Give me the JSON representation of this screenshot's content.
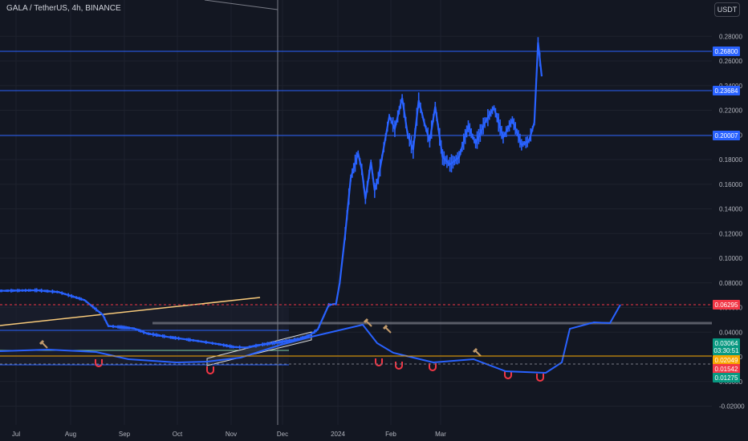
{
  "header": {
    "title": "GALA / TetherUS, 4h, BINANCE",
    "currency_button": "USDT"
  },
  "colors": {
    "background": "#131722",
    "price": "#2962ff",
    "grid": "#1e222d",
    "axis_text": "#b2b5be",
    "current_price": "#f23645",
    "support_green": "#089981",
    "orange_level": "#f7a600"
  },
  "chart_data": {
    "type": "line",
    "title": "GALA / TetherUS, 4h, BINANCE",
    "xlabel": "",
    "ylabel": "",
    "ylim": [
      -0.025,
      0.295
    ],
    "grid": true,
    "x_ticks": [
      "Jul",
      "Aug",
      "Sep",
      "Oct",
      "Nov",
      "Dec",
      "2024",
      "Feb",
      "Mar"
    ],
    "y_ticks": [
      "0.28000",
      "0.26000",
      "0.24000",
      "0.22000",
      "0.20000",
      "0.18000",
      "0.16000",
      "0.14000",
      "0.12000",
      "0.10000",
      "0.08000",
      "0.06000",
      "0.04000",
      "0.02000",
      "0.00000",
      "-0.02000"
    ],
    "series": [
      {
        "x": [
          "Jun 20",
          "Jul 10",
          "Jul 22",
          "Aug 5",
          "Aug 15",
          "Aug 18",
          "Sep 1",
          "Sep 8",
          "Sep 20",
          "Oct 5",
          "Oct 18",
          "Oct 25",
          "Nov 1",
          "Nov 10",
          "Nov 20",
          "Nov 30",
          "Dec 5",
          "Dec 10",
          "Dec 16",
          "Dec 20",
          "Dec 22",
          "Dec 25",
          "Dec 28",
          "Jan 1",
          "Jan 3",
          "Jan 5",
          "Jan 8",
          "Jan 10",
          "Jan 12",
          "Jan 15",
          "Jan 18",
          "Jan 21",
          "Jan 25",
          "Jan 28",
          "Jan 31",
          "Feb 3",
          "Feb 6",
          "Feb 9",
          "Feb 12",
          "Feb 16",
          "Feb 20",
          "Feb 25",
          "Mar 1",
          "Mar 5",
          "Mar 10",
          "Mar 15",
          "Mar 20",
          "Mar 25",
          "Mar 30",
          "Apr 3",
          "Apr 6",
          "Apr 8",
          "Apr 10"
        ],
        "values": [
          0.0735,
          0.074,
          0.0725,
          0.066,
          0.054,
          0.045,
          0.043,
          0.039,
          0.036,
          0.033,
          0.03,
          0.028,
          0.0275,
          0.03,
          0.032,
          0.0345,
          0.037,
          0.042,
          0.062,
          0.063,
          0.08,
          0.12,
          0.165,
          0.185,
          0.172,
          0.148,
          0.178,
          0.155,
          0.165,
          0.19,
          0.215,
          0.205,
          0.23,
          0.2,
          0.188,
          0.228,
          0.21,
          0.195,
          0.223,
          0.182,
          0.176,
          0.182,
          0.207,
          0.193,
          0.21,
          0.222,
          0.198,
          0.212,
          0.192,
          0.195,
          0.21,
          0.275,
          0.2475
        ]
      }
    ],
    "horizontal_levels": [
      {
        "label": "0.26800",
        "value": 0.268,
        "color": "#2962ff"
      },
      {
        "label": "0.23684",
        "value": 0.23684,
        "color": "#2962ff"
      },
      {
        "label": "0.20007",
        "value": 0.20007,
        "color": "#2962ff"
      },
      {
        "label": "0.06295",
        "value": 0.06295,
        "color": "#f23645"
      },
      {
        "label": "0.03064",
        "value": 0.03064,
        "color": "#089981"
      },
      {
        "label": "03:30:51",
        "value": 0.0245,
        "color": "#089981"
      },
      {
        "label": "0.02049",
        "value": 0.02049,
        "color": "#f7a600"
      },
      {
        "label": "0.01542",
        "value": 0.01542,
        "color": "#f23645"
      },
      {
        "label": "0.01275",
        "value": 0.01275,
        "color": "#089981"
      }
    ]
  }
}
